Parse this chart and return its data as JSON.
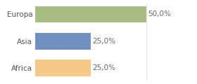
{
  "categories": [
    "Africa",
    "Asia",
    "Europa"
  ],
  "values": [
    25.0,
    25.0,
    50.0
  ],
  "bar_colors": [
    "#f5c98a",
    "#7090c0",
    "#a8bc84"
  ],
  "xlim": [
    0,
    62
  ],
  "background_color": "#ffffff",
  "tick_label_fontsize": 7.5,
  "value_label_fontsize": 7.5,
  "bar_height": 0.62,
  "figsize": [
    2.8,
    1.2
  ],
  "dpi": 100
}
